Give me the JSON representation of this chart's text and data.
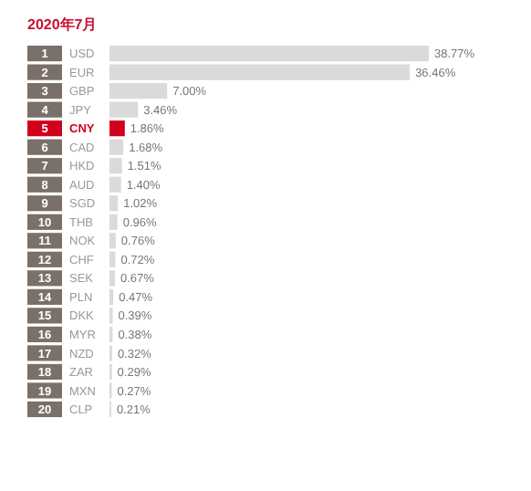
{
  "chart_data": {
    "type": "bar",
    "orientation": "horizontal",
    "relative": false,
    "value_labels": [
      "38.77%",
      "36.46%",
      "7.00%",
      "3.46%",
      "1.86%",
      "1.68%",
      "1.51%",
      "1.40%",
      "1.02%",
      "0.96%",
      "0.76%",
      "0.72%",
      "0.67%",
      "0.47%",
      "0.39%",
      "0.38%",
      "0.32%",
      "0.29%",
      "0.27%",
      "0.21%"
    ],
    "title": "2020年7月",
    "categories": [
      "USD",
      "EUR",
      "GBP",
      "JPY",
      "CNY",
      "CAD",
      "HKD",
      "AUD",
      "SGD",
      "THB",
      "NOK",
      "CHF",
      "SEK",
      "PLN",
      "DKK",
      "MYR",
      "NZD",
      "ZAR",
      "MXN",
      "CLP"
    ],
    "values": [
      38.77,
      36.46,
      7.0,
      3.46,
      1.86,
      1.68,
      1.51,
      1.4,
      1.02,
      0.96,
      0.76,
      0.72,
      0.67,
      0.47,
      0.39,
      0.38,
      0.32,
      0.29,
      0.27,
      0.21
    ],
    "colors": [
      "#dcdad9",
      "#dcdad9",
      "#dcdad9",
      "#dcdad9",
      "#d0021b",
      "#dcdad9",
      "#dcdad9",
      "#dcdad9",
      "#dcdad9",
      "#dcdad9",
      "#dcdad9",
      "#dcdad9",
      "#dcdad9",
      "#dcdad9",
      "#dcdad9",
      "#dcdad9",
      "#dcdad9",
      "#dcdad9",
      "#dcdad9",
      "#dcdad9"
    ],
    "annotations": [
      "1",
      "2",
      "3",
      "4",
      "5",
      "6",
      "7",
      "8",
      "9",
      "10",
      "11",
      "12",
      "13",
      "14",
      "15",
      "16",
      "17",
      "18",
      "19",
      "20"
    ]
  }
}
